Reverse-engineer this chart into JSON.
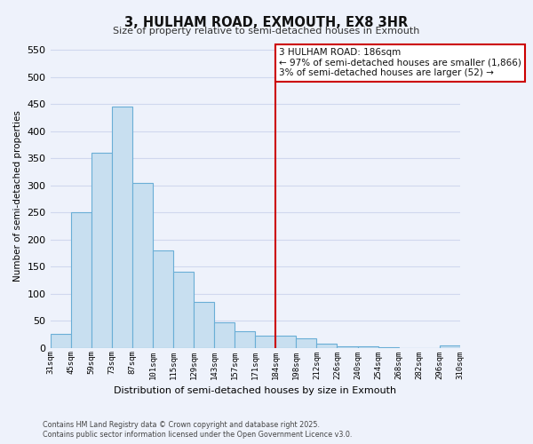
{
  "title": "3, HULHAM ROAD, EXMOUTH, EX8 3HR",
  "subtitle": "Size of property relative to semi-detached houses in Exmouth",
  "xlabel": "Distribution of semi-detached houses by size in Exmouth",
  "ylabel": "Number of semi-detached properties",
  "bar_values": [
    25,
    250,
    360,
    445,
    305,
    180,
    140,
    85,
    47,
    30,
    23,
    23,
    17,
    8,
    2,
    2,
    1,
    0,
    0,
    5
  ],
  "bin_labels": [
    "31sqm",
    "45sqm",
    "59sqm",
    "73sqm",
    "87sqm",
    "101sqm",
    "115sqm",
    "129sqm",
    "143sqm",
    "157sqm",
    "171sqm",
    "184sqm",
    "198sqm",
    "212sqm",
    "226sqm",
    "240sqm",
    "254sqm",
    "268sqm",
    "282sqm",
    "296sqm",
    "310sqm"
  ],
  "bar_color": "#c8dff0",
  "bar_edge_color": "#6aaed6",
  "vline_color": "#cc0000",
  "annotation_text": "3 HULHAM ROAD: 186sqm\n← 97% of semi-detached houses are smaller (1,866)\n3% of semi-detached houses are larger (52) →",
  "annotation_box_color": "#ffffff",
  "annotation_box_edge_color": "#cc0000",
  "ylim": [
    0,
    560
  ],
  "yticks": [
    0,
    50,
    100,
    150,
    200,
    250,
    300,
    350,
    400,
    450,
    500,
    550
  ],
  "footer_line1": "Contains HM Land Registry data © Crown copyright and database right 2025.",
  "footer_line2": "Contains public sector information licensed under the Open Government Licence v3.0.",
  "background_color": "#eef2fb",
  "grid_color": "#d0d8ee"
}
